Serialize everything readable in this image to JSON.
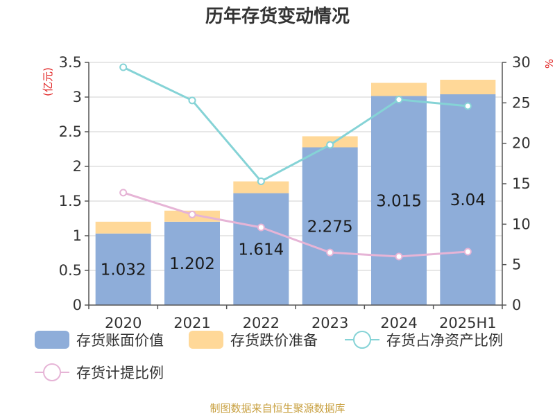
{
  "title": "历年存货变动情况",
  "source": "制图数据来自恒生聚源数据库",
  "left_unit": "(亿元)",
  "right_unit": "%",
  "colors": {
    "book_value": "#8eadd9",
    "impairment": "#ffd898",
    "net_asset_ratio": "#85d3d6",
    "provision_ratio": "#e6b4d6"
  },
  "chart_data": {
    "type": "bar",
    "title": "历年存货变动情况",
    "categories": [
      "2020",
      "2021",
      "2022",
      "2023",
      "2024",
      "2025H1"
    ],
    "y_left": {
      "label": "(亿元)",
      "ylim": [
        0,
        3.5
      ],
      "ticks": [
        "0",
        "0.5",
        "1",
        "1.5",
        "2",
        "2.5",
        "3",
        "3.5"
      ]
    },
    "y_right": {
      "label": "%",
      "ylim": [
        0,
        30
      ],
      "ticks": [
        "0",
        "5",
        "10",
        "15",
        "20",
        "25",
        "30"
      ]
    },
    "grid": true,
    "legend_position": "bottom",
    "series": [
      {
        "name": "存货账面价值",
        "type": "bar",
        "stack": "inv",
        "axis": "left",
        "values": [
          1.032,
          1.202,
          1.614,
          2.275,
          3.015,
          3.04
        ],
        "labels": [
          "1.032",
          "1.202",
          "1.614",
          "2.275",
          "3.015",
          "3.04"
        ]
      },
      {
        "name": "存货跌价准备",
        "type": "bar",
        "stack": "inv",
        "axis": "left",
        "values": [
          0.17,
          0.16,
          0.17,
          0.16,
          0.19,
          0.21
        ]
      },
      {
        "name": "存货占净资产比例",
        "type": "line",
        "axis": "right",
        "values": [
          29.4,
          25.3,
          15.3,
          19.8,
          25.4,
          24.6
        ]
      },
      {
        "name": "存货计提比例",
        "type": "line",
        "axis": "right",
        "values": [
          13.9,
          11.2,
          9.6,
          6.5,
          6.0,
          6.6
        ]
      }
    ]
  }
}
